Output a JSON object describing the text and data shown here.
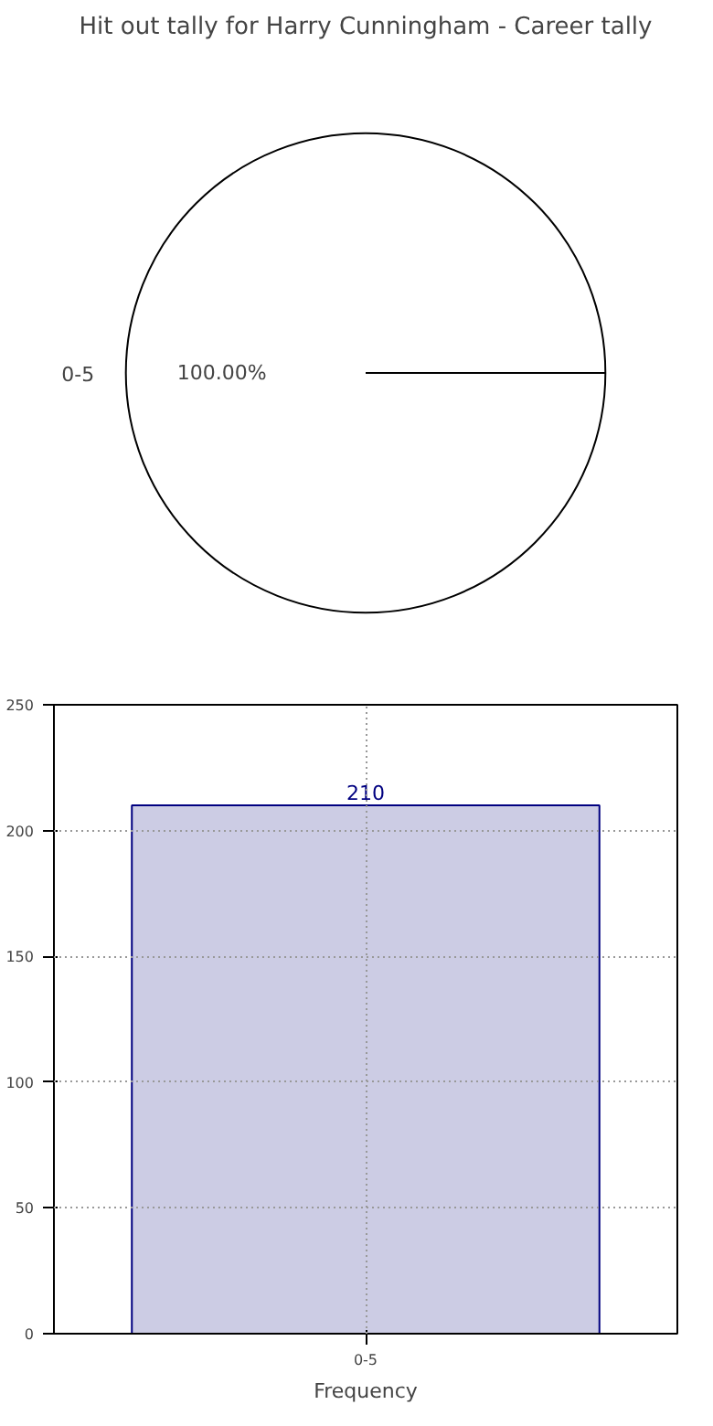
{
  "chart_data": [
    {
      "type": "pie",
      "title": "Hit out tally for Harry Cunningham - Career tally",
      "categories": [
        "0-5"
      ],
      "values": [
        100
      ],
      "colors": [
        "#ffffff"
      ],
      "value_labels": [
        "100.00%"
      ]
    },
    {
      "type": "bar",
      "xlabel": "Frequency",
      "categories": [
        "0-5"
      ],
      "values": [
        210
      ],
      "color": "#ccccE4",
      "ylim": [
        0,
        250
      ],
      "yticks": [
        0,
        50,
        100,
        150,
        200,
        250
      ],
      "grid": true,
      "data_labels": true
    }
  ]
}
